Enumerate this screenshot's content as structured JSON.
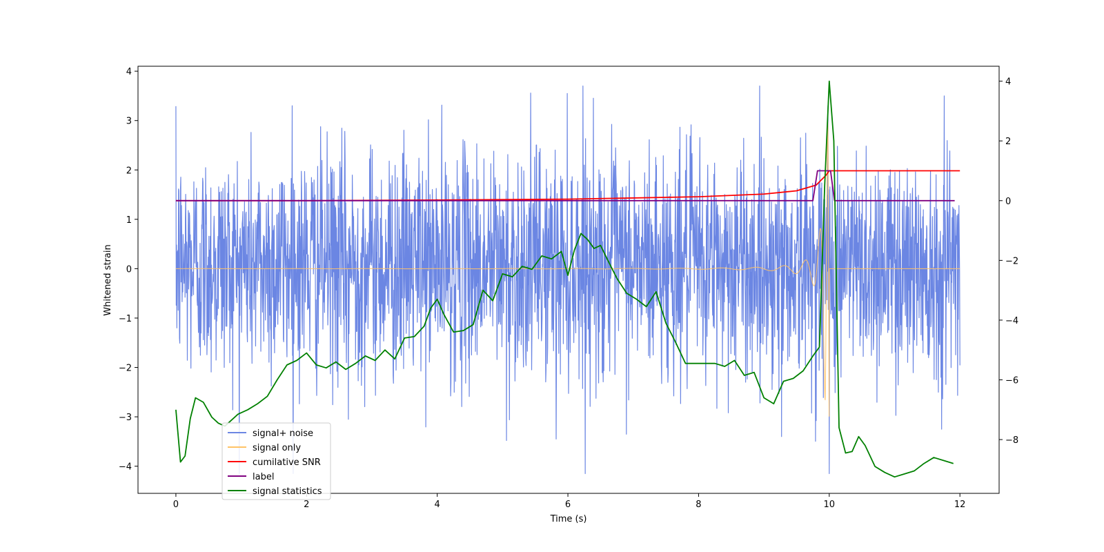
{
  "chart_data": {
    "type": "line",
    "title": "",
    "xlabel": "Time (s)",
    "ylabel": "Whitened strain",
    "ylabel_right": "",
    "xlim": [
      -0.58,
      12.6
    ],
    "ylim": [
      -4.55,
      4.1
    ],
    "ylim_right": [
      -9.8,
      4.5
    ],
    "x_ticks": [
      0,
      2,
      4,
      6,
      8,
      10,
      12
    ],
    "x_tick_labels": [
      "0",
      "2",
      "4",
      "6",
      "8",
      "10",
      "12"
    ],
    "y_ticks": [
      -4,
      -3,
      -2,
      -1,
      0,
      1,
      2,
      3,
      4
    ],
    "y_tick_labels": [
      "−4",
      "−3",
      "−2",
      "−1",
      "0",
      "1",
      "2",
      "3",
      "4"
    ],
    "y_right_ticks": [
      -8,
      -6,
      -4,
      -2,
      0,
      2,
      4
    ],
    "y_right_tick_labels": [
      "−8",
      "−6",
      "−4",
      "−2",
      "0",
      "2",
      "4"
    ],
    "legend_position": "lower-left",
    "legend": [
      {
        "name": "signal+ noise",
        "color": "#6b86e3"
      },
      {
        "name": "signal only",
        "color": "#ffc266"
      },
      {
        "name": "cumilative SNR",
        "color": "#ff0000"
      },
      {
        "name": "label",
        "color": "#800080"
      },
      {
        "name": "signal statistics",
        "color": "#008000"
      }
    ],
    "series": [
      {
        "name": "signal+ noise",
        "axis": "left",
        "color": "#6b86e3",
        "description": "dense noisy trace spanning 0-12 s, roughly uniform amplitude",
        "x_range": [
          0,
          12
        ],
        "typical_range": [
          -2.2,
          2.4
        ],
        "extremes": {
          "max": 3.7,
          "min": -4.15
        },
        "spike_points": [
          {
            "x": 1.78,
            "y": 3.3
          },
          {
            "x": 6.23,
            "y": 3.7
          },
          {
            "x": 9.98,
            "y": 3.3
          },
          {
            "x": 11.76,
            "y": 3.5
          },
          {
            "x": 10.0,
            "y": -4.15
          },
          {
            "x": 5.06,
            "y": -3.48
          },
          {
            "x": 5.82,
            "y": -3.45
          },
          {
            "x": 9.27,
            "y": -3.4
          },
          {
            "x": 2.64,
            "y": -3.05
          },
          {
            "x": 11.72,
            "y": -3.25
          }
        ]
      },
      {
        "name": "signal only",
        "axis": "left",
        "color": "#ffc266",
        "description": "chirp signal: near-zero amplitude growing to peak near 10 s then zero",
        "x_range": [
          0,
          12
        ],
        "chirp_peak_time": 10.0,
        "peak_amplitude": 3.0
      },
      {
        "name": "cumilative SNR",
        "axis": "right",
        "color": "#ff0000",
        "x": [
          0,
          2,
          4,
          6,
          8,
          9,
          9.5,
          9.8,
          9.95,
          10.0,
          10.05,
          12
        ],
        "y": [
          0,
          0,
          0.02,
          0.05,
          0.13,
          0.22,
          0.33,
          0.52,
          0.85,
          1.0,
          1.0,
          1.0
        ]
      },
      {
        "name": "label",
        "axis": "right",
        "color": "#800080",
        "x": [
          0,
          9.75,
          9.82,
          10.02,
          10.08,
          11.92
        ],
        "y": [
          0,
          0,
          1.0,
          1.0,
          0,
          0
        ]
      },
      {
        "name": "signal statistics",
        "axis": "right",
        "color": "#008000",
        "x": [
          0,
          0.07,
          0.14,
          0.22,
          0.3,
          0.42,
          0.55,
          0.65,
          0.75,
          0.85,
          0.95,
          1.1,
          1.25,
          1.4,
          1.55,
          1.7,
          1.85,
          2.0,
          2.15,
          2.3,
          2.45,
          2.6,
          2.75,
          2.9,
          3.05,
          3.2,
          3.35,
          3.5,
          3.65,
          3.8,
          3.9,
          4.0,
          4.1,
          4.25,
          4.4,
          4.55,
          4.7,
          4.85,
          5.0,
          5.15,
          5.3,
          5.45,
          5.6,
          5.75,
          5.9,
          6.0,
          6.1,
          6.2,
          6.3,
          6.4,
          6.5,
          6.6,
          6.75,
          6.9,
          7.05,
          7.2,
          7.35,
          7.5,
          7.65,
          7.8,
          7.95,
          8.1,
          8.25,
          8.4,
          8.55,
          8.7,
          8.85,
          9.0,
          9.15,
          9.3,
          9.45,
          9.6,
          9.75,
          9.85,
          9.93,
          10.0,
          10.07,
          10.15,
          10.25,
          10.35,
          10.45,
          10.55,
          10.7,
          10.85,
          11.0,
          11.15,
          11.3,
          11.45,
          11.6,
          11.75,
          11.9
        ],
        "y": [
          -7.0,
          -8.75,
          -8.55,
          -7.3,
          -6.6,
          -6.75,
          -7.25,
          -7.45,
          -7.55,
          -7.35,
          -7.15,
          -7.0,
          -6.8,
          -6.55,
          -6.0,
          -5.5,
          -5.35,
          -5.1,
          -5.5,
          -5.6,
          -5.4,
          -5.65,
          -5.45,
          -5.2,
          -5.35,
          -5.0,
          -5.3,
          -4.6,
          -4.55,
          -4.2,
          -3.6,
          -3.3,
          -3.8,
          -4.4,
          -4.35,
          -4.15,
          -3.0,
          -3.35,
          -2.45,
          -2.55,
          -2.2,
          -2.3,
          -1.85,
          -1.95,
          -1.7,
          -2.5,
          -1.65,
          -1.1,
          -1.3,
          -1.6,
          -1.5,
          -1.95,
          -2.6,
          -3.1,
          -3.3,
          -3.55,
          -3.05,
          -4.1,
          -4.75,
          -5.45,
          -5.45,
          -5.45,
          -5.45,
          -5.55,
          -5.35,
          -5.85,
          -5.75,
          -6.6,
          -6.8,
          -6.05,
          -5.95,
          -5.7,
          -5.2,
          -4.9,
          0.5,
          4.0,
          2.0,
          -7.6,
          -8.45,
          -8.4,
          -7.9,
          -8.2,
          -8.9,
          -9.1,
          -9.25,
          -9.15,
          -9.05,
          -8.8,
          -8.6,
          -8.7,
          -8.8
        ]
      }
    ]
  }
}
